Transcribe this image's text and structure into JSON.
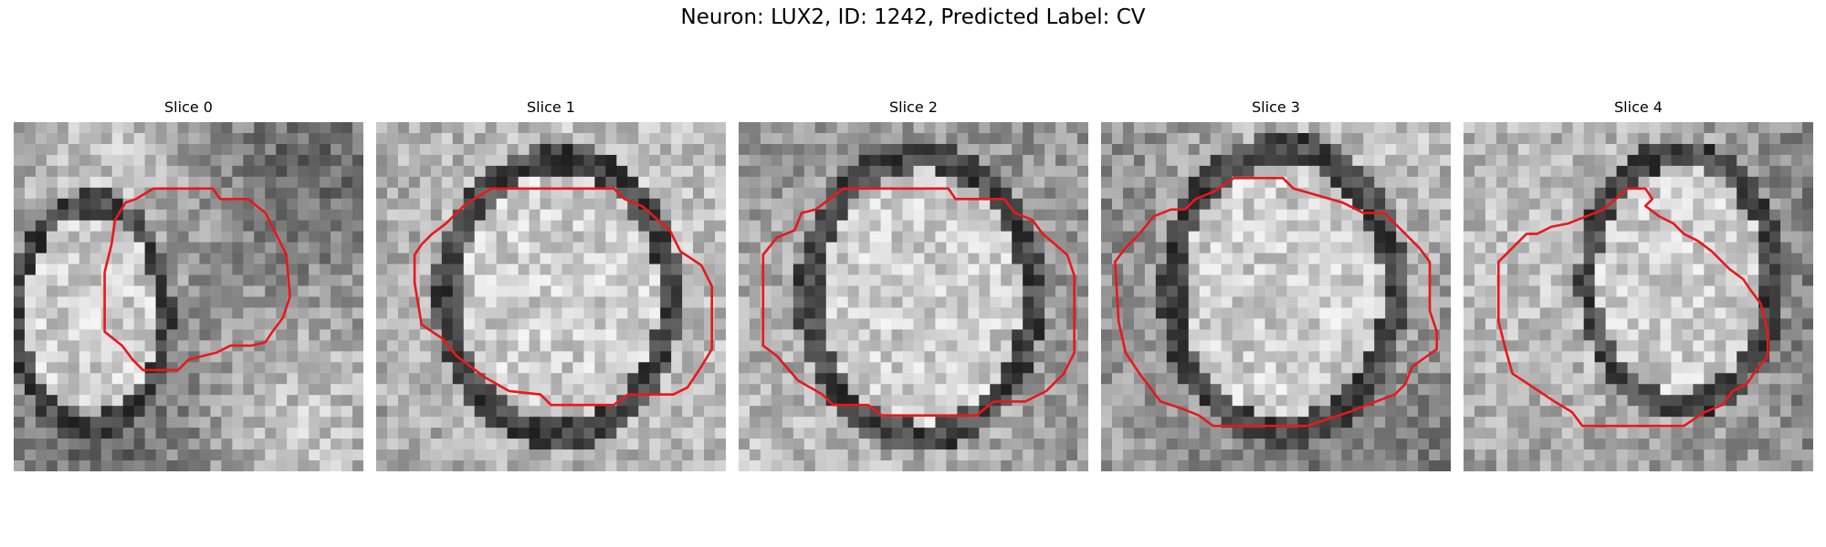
{
  "figure": {
    "title": "Neuron: LUX2, ID: 1242, Predicted Label: CV"
  },
  "colors": {
    "contour": "#e8181c"
  },
  "panels": [
    {
      "title": "Slice 0",
      "seed": 7,
      "scale": 5,
      "blob": [
        0.22,
        0.55,
        0.2,
        0.3
      ],
      "contour": [
        [
          0.4,
          0.19
        ],
        [
          0.57,
          0.19
        ],
        [
          0.59,
          0.22
        ],
        [
          0.67,
          0.22
        ],
        [
          0.72,
          0.26
        ],
        [
          0.75,
          0.32
        ],
        [
          0.78,
          0.38
        ],
        [
          0.79,
          0.5
        ],
        [
          0.77,
          0.56
        ],
        [
          0.74,
          0.6
        ],
        [
          0.72,
          0.63
        ],
        [
          0.68,
          0.64
        ],
        [
          0.62,
          0.64
        ],
        [
          0.58,
          0.66
        ],
        [
          0.5,
          0.68
        ],
        [
          0.47,
          0.71
        ],
        [
          0.37,
          0.71
        ],
        [
          0.34,
          0.68
        ],
        [
          0.31,
          0.64
        ],
        [
          0.26,
          0.6
        ],
        [
          0.26,
          0.43
        ],
        [
          0.28,
          0.35
        ],
        [
          0.29,
          0.28
        ],
        [
          0.32,
          0.23
        ],
        [
          0.35,
          0.22
        ]
      ]
    },
    {
      "title": "Slice 1",
      "seed": 13,
      "scale": 1.6,
      "blob": [
        0.52,
        0.5,
        0.3,
        0.37
      ],
      "contour": [
        [
          0.33,
          0.19
        ],
        [
          0.68,
          0.19
        ],
        [
          0.71,
          0.22
        ],
        [
          0.76,
          0.24
        ],
        [
          0.84,
          0.31
        ],
        [
          0.87,
          0.37
        ],
        [
          0.93,
          0.41
        ],
        [
          0.96,
          0.47
        ],
        [
          0.96,
          0.65
        ],
        [
          0.93,
          0.7
        ],
        [
          0.89,
          0.76
        ],
        [
          0.85,
          0.78
        ],
        [
          0.72,
          0.78
        ],
        [
          0.68,
          0.81
        ],
        [
          0.5,
          0.81
        ],
        [
          0.47,
          0.78
        ],
        [
          0.38,
          0.77
        ],
        [
          0.31,
          0.73
        ],
        [
          0.23,
          0.67
        ],
        [
          0.19,
          0.62
        ],
        [
          0.13,
          0.58
        ],
        [
          0.11,
          0.46
        ],
        [
          0.11,
          0.38
        ],
        [
          0.13,
          0.35
        ],
        [
          0.16,
          0.32
        ],
        [
          0.2,
          0.29
        ],
        [
          0.25,
          0.24
        ],
        [
          0.28,
          0.22
        ]
      ]
    },
    {
      "title": "Slice 2",
      "seed": 21,
      "scale": 1.4,
      "blob": [
        0.52,
        0.5,
        0.3,
        0.38
      ],
      "contour": [
        [
          0.3,
          0.19
        ],
        [
          0.6,
          0.19
        ],
        [
          0.62,
          0.22
        ],
        [
          0.76,
          0.22
        ],
        [
          0.79,
          0.26
        ],
        [
          0.84,
          0.28
        ],
        [
          0.87,
          0.32
        ],
        [
          0.94,
          0.38
        ],
        [
          0.96,
          0.44
        ],
        [
          0.96,
          0.66
        ],
        [
          0.93,
          0.72
        ],
        [
          0.88,
          0.77
        ],
        [
          0.82,
          0.8
        ],
        [
          0.73,
          0.8
        ],
        [
          0.68,
          0.84
        ],
        [
          0.41,
          0.84
        ],
        [
          0.37,
          0.81
        ],
        [
          0.27,
          0.81
        ],
        [
          0.24,
          0.78
        ],
        [
          0.17,
          0.74
        ],
        [
          0.11,
          0.67
        ],
        [
          0.07,
          0.64
        ],
        [
          0.07,
          0.51
        ],
        [
          0.07,
          0.38
        ],
        [
          0.11,
          0.33
        ],
        [
          0.16,
          0.31
        ],
        [
          0.18,
          0.26
        ],
        [
          0.22,
          0.25
        ],
        [
          0.26,
          0.22
        ]
      ]
    },
    {
      "title": "Slice 3",
      "seed": 29,
      "scale": 2.4,
      "blob": [
        0.52,
        0.48,
        0.3,
        0.38
      ],
      "contour": [
        [
          0.38,
          0.16
        ],
        [
          0.52,
          0.16
        ],
        [
          0.55,
          0.19
        ],
        [
          0.62,
          0.21
        ],
        [
          0.69,
          0.23
        ],
        [
          0.75,
          0.26
        ],
        [
          0.81,
          0.26
        ],
        [
          0.86,
          0.31
        ],
        [
          0.91,
          0.36
        ],
        [
          0.94,
          0.4
        ],
        [
          0.94,
          0.54
        ],
        [
          0.96,
          0.6
        ],
        [
          0.96,
          0.65
        ],
        [
          0.89,
          0.7
        ],
        [
          0.87,
          0.75
        ],
        [
          0.84,
          0.78
        ],
        [
          0.76,
          0.81
        ],
        [
          0.71,
          0.83
        ],
        [
          0.59,
          0.87
        ],
        [
          0.32,
          0.87
        ],
        [
          0.28,
          0.84
        ],
        [
          0.23,
          0.82
        ],
        [
          0.17,
          0.8
        ],
        [
          0.11,
          0.72
        ],
        [
          0.07,
          0.66
        ],
        [
          0.05,
          0.57
        ],
        [
          0.04,
          0.4
        ],
        [
          0.07,
          0.36
        ],
        [
          0.11,
          0.32
        ],
        [
          0.15,
          0.27
        ],
        [
          0.2,
          0.25
        ],
        [
          0.24,
          0.25
        ],
        [
          0.27,
          0.22
        ],
        [
          0.32,
          0.2
        ]
      ]
    },
    {
      "title": "Slice 4",
      "seed": 37,
      "scale": 2.8,
      "blob": [
        0.62,
        0.45,
        0.25,
        0.34
      ],
      "contour": [
        [
          0.47,
          0.19
        ],
        [
          0.52,
          0.19
        ],
        [
          0.54,
          0.22
        ],
        [
          0.52,
          0.24
        ],
        [
          0.56,
          0.27
        ],
        [
          0.6,
          0.29
        ],
        [
          0.63,
          0.32
        ],
        [
          0.67,
          0.34
        ],
        [
          0.71,
          0.37
        ],
        [
          0.76,
          0.42
        ],
        [
          0.8,
          0.45
        ],
        [
          0.82,
          0.48
        ],
        [
          0.85,
          0.52
        ],
        [
          0.87,
          0.6
        ],
        [
          0.87,
          0.67
        ],
        [
          0.83,
          0.72
        ],
        [
          0.81,
          0.75
        ],
        [
          0.77,
          0.77
        ],
        [
          0.74,
          0.81
        ],
        [
          0.69,
          0.83
        ],
        [
          0.63,
          0.87
        ],
        [
          0.34,
          0.87
        ],
        [
          0.31,
          0.83
        ],
        [
          0.26,
          0.8
        ],
        [
          0.2,
          0.76
        ],
        [
          0.14,
          0.72
        ],
        [
          0.12,
          0.65
        ],
        [
          0.1,
          0.57
        ],
        [
          0.1,
          0.4
        ],
        [
          0.13,
          0.37
        ],
        [
          0.18,
          0.32
        ],
        [
          0.21,
          0.32
        ],
        [
          0.25,
          0.3
        ],
        [
          0.3,
          0.29
        ],
        [
          0.35,
          0.27
        ],
        [
          0.4,
          0.25
        ]
      ]
    }
  ]
}
